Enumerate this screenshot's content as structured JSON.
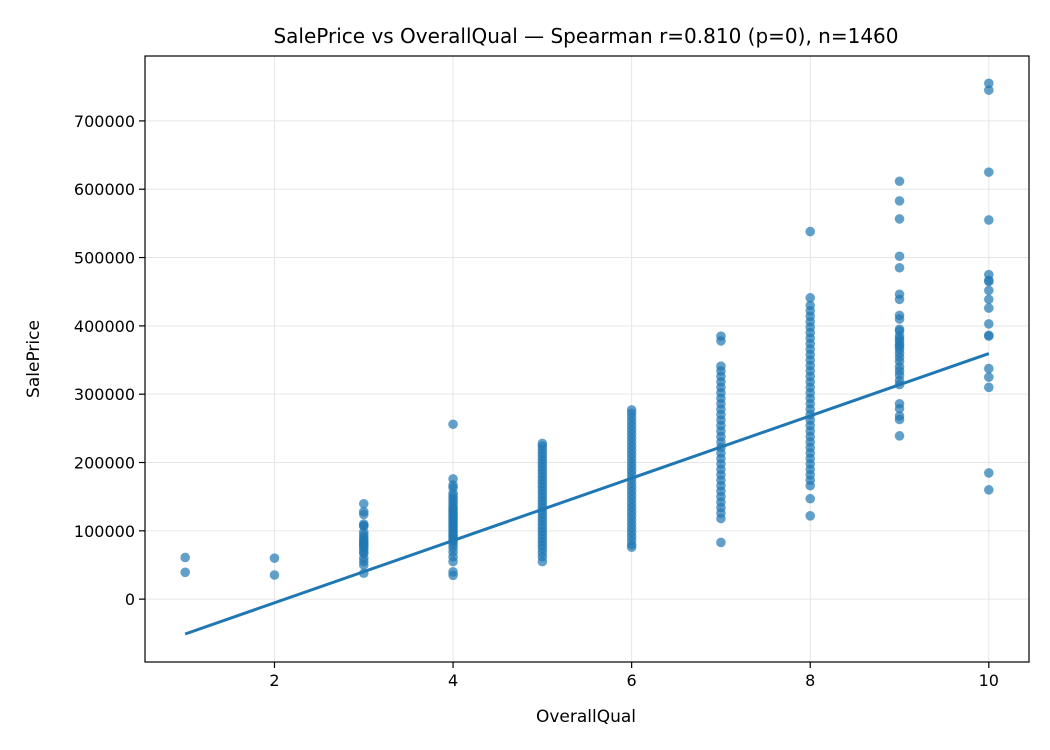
{
  "chart_data": {
    "type": "scatter",
    "title": "SalePrice vs OverallQual — Spearman r=0.810 (p=0), n=1460",
    "xlabel": "OverallQual",
    "ylabel": "SalePrice",
    "xlim": [
      0.55,
      10.45
    ],
    "ylim": [
      -92000,
      795000
    ],
    "x_ticks": [
      2,
      4,
      6,
      8,
      10
    ],
    "y_ticks": [
      0,
      100000,
      200000,
      300000,
      400000,
      500000,
      600000,
      700000
    ],
    "grid": true,
    "point_color": "#1f77b4",
    "line_color": "#1f77b4",
    "series": [
      {
        "values": [
          {
            "x": 1,
            "values": [
              61000,
              39300
            ]
          },
          {
            "x": 2,
            "values": [
              60000,
              35311
            ]
          },
          {
            "x": 3,
            "values": [
              139600,
              128000,
              124000,
              110000,
              107000,
              107500,
              98000,
              94000,
              90000,
              87000,
              85000,
              82500,
              80000,
              79000,
              76000,
              72500,
              68400,
              67000,
              60000,
              55000,
              50000,
              37900
            ]
          },
          {
            "x": 4,
            "values": [
              256000,
              176000,
              167000,
              163000,
              155000,
              151000,
              147000,
              143000,
              139000,
              135000,
              132000,
              129000,
              126000,
              123000,
              120000,
              117000,
              114000,
              111000,
              108000,
              105000,
              102000,
              99000,
              96000,
              93000,
              90000,
              87000,
              84000,
              80000,
              75000,
              69000,
              62000,
              55000,
              40000,
              34900
            ]
          },
          {
            "x": 5,
            "values": [
              228000,
              224000,
              219000,
              214000,
              209000,
              204000,
              199000,
              194000,
              189000,
              184000,
              179000,
              174000,
              169000,
              164000,
              159000,
              154000,
              149000,
              144000,
              139000,
              134000,
              129000,
              124000,
              119000,
              114000,
              109000,
              104000,
              99000,
              94000,
              89000,
              84000,
              79000,
              74000,
              68000,
              62000,
              55000
            ]
          },
          {
            "x": 6,
            "values": [
              277000,
              272000,
              266000,
              260000,
              254000,
              248000,
              242000,
              236000,
              230000,
              224000,
              218000,
              212000,
              206000,
              200000,
              194000,
              188000,
              182000,
              176000,
              170000,
              164000,
              158000,
              152000,
              146000,
              140000,
              134000,
              128000,
              122000,
              116000,
              110000,
              104000,
              98000,
              92000,
              86000,
              80000,
              76000
            ]
          },
          {
            "x": 7,
            "values": [
              385000,
              378000,
              341000,
              334000,
              326000,
              318000,
              310000,
              302000,
              294000,
              286000,
              278000,
              270000,
              262000,
              254000,
              246000,
              238000,
              230000,
              222000,
              214000,
              206000,
              198000,
              190000,
              182000,
              174000,
              166000,
              158000,
              150000,
              142000,
              134000,
              126000,
              118000,
              83000
            ]
          },
          {
            "x": 8,
            "values": [
              538000,
              441000,
              430000,
              422000,
              414000,
              406000,
              398000,
              390000,
              382000,
              374000,
              366000,
              358000,
              350000,
              342000,
              334000,
              326000,
              318000,
              310000,
              302000,
              294000,
              286000,
              278000,
              270000,
              262000,
              254000,
              246000,
              238000,
              230000,
              222000,
              214000,
              206000,
              198000,
              190000,
              182000,
              174000,
              166000,
              147000,
              122000
            ]
          },
          {
            "x": 9,
            "values": [
              611657,
              582933,
              556581,
              501837,
              485000,
              446261,
              438780,
              415298,
              410000,
              395000,
              392500,
              385000,
              381000,
              377500,
              372500,
              370000,
              366000,
              360000,
              354000,
              348000,
              340000,
              334000,
              328000,
              320000,
              314000,
              286000,
              279000,
              268000,
              263000,
              239000
            ]
          },
          {
            "x": 10,
            "values": [
              755000,
              745000,
              625000,
              555000,
              475000,
              466500,
              465000,
              451950,
              438780,
              426000,
              402861,
              386250,
              385000,
              337500,
              325000,
              310000,
              184750,
              160000
            ]
          }
        ]
      }
    ],
    "regression_line": {
      "x": [
        1,
        10
      ],
      "y": [
        -51000,
        359500
      ]
    }
  }
}
